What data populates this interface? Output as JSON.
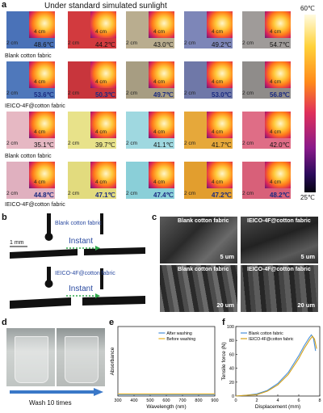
{
  "panel_a": {
    "label": "a",
    "title": "Under standard simulated sunlight",
    "colorbar": {
      "max": "60℃",
      "min": "25℃"
    },
    "tile_scale_fabric": "2 cm",
    "tile_scale_thermal": "4 cm",
    "rows": [
      {
        "label": "",
        "bold": false,
        "temps": [
          "48.6℃",
          "44.2℃",
          "43.0℃",
          "49.2℃",
          "54.7℃"
        ]
      },
      {
        "label": "Blank cotton fabric",
        "bold": true,
        "temps": [
          "53.6℃",
          "50.3℃",
          "49.7℃",
          "53.0℃",
          "56.8℃"
        ]
      },
      {
        "label": "IEICO-4F@cotton fabric",
        "bold": false,
        "temps": [
          "35.1℃",
          "39.7℃",
          "41.1℃",
          "41.7℃",
          "42.0℃"
        ]
      },
      {
        "label": "Blank cotton fabric",
        "bold": true,
        "temps": [
          "44.8℃",
          "47.1℃",
          "47.4℃",
          "47.2℃",
          "48.2℃"
        ]
      }
    ],
    "bottom_label": "IEICO-4F@cotton fabric",
    "colors": {
      "row0": [
        "#4a72b8",
        "#d23a3e",
        "#b9ad8f",
        "#7d86b8",
        "#9f9b99"
      ],
      "row1": [
        "#4f78bb",
        "#c8353c",
        "#a79d82",
        "#6f78a8",
        "#8f8c8a"
      ],
      "row2": [
        "#e6b8c3",
        "#e8e28a",
        "#9fd8e0",
        "#e6a83a",
        "#df6d86"
      ],
      "row3": [
        "#e0b0bf",
        "#e2db7e",
        "#8acfd8",
        "#e29e2e",
        "#d86079"
      ]
    }
  },
  "panel_b": {
    "label": "b",
    "top_label": "Blank cotton fabric",
    "bottom_label": "IEICO-4F@cotton fabric",
    "scale": "1 mm",
    "instant": "Instant"
  },
  "panel_c": {
    "label": "c",
    "images": [
      {
        "label": "Blank cotton fabric",
        "scale": "5 um"
      },
      {
        "label": "IEICO-4F@cotton fabric",
        "scale": "5 um"
      },
      {
        "label": "Blank cotton fabric",
        "scale": "20 um"
      },
      {
        "label": "IEICO-4F@cotton fabric",
        "scale": "20 um"
      }
    ]
  },
  "panel_d": {
    "label": "d",
    "caption": "Wash 10 times"
  },
  "chart_data": [
    {
      "panel": "e",
      "type": "line",
      "xlabel": "Wavelength (nm)",
      "ylabel": "Absorbance",
      "xlim": [
        300,
        900
      ],
      "xticks": [
        "300",
        "400",
        "500",
        "600",
        "700",
        "800",
        "900"
      ],
      "series": [
        {
          "name": "After washing",
          "color": "#4a90d9",
          "x": [
            300,
            400,
            500,
            600,
            700,
            800,
            900
          ],
          "y": [
            0.02,
            0.02,
            0.02,
            0.02,
            0.02,
            0.02,
            0.02
          ]
        },
        {
          "name": "Before washing",
          "color": "#e8b020",
          "x": [
            300,
            400,
            500,
            600,
            700,
            800,
            900
          ],
          "y": [
            0.03,
            0.03,
            0.03,
            0.03,
            0.03,
            0.03,
            0.03
          ]
        }
      ],
      "ylim": [
        0,
        1
      ]
    },
    {
      "panel": "f",
      "type": "line",
      "xlabel": "Displacement (mm)",
      "ylabel": "Tensile force (N)",
      "xlim": [
        0,
        8
      ],
      "ylim": [
        0,
        100
      ],
      "xticks": [
        "0",
        "2",
        "4",
        "6",
        "8"
      ],
      "yticks": [
        "0",
        "20",
        "40",
        "60",
        "80",
        "100"
      ],
      "series": [
        {
          "name": "Blank cotton fabric",
          "color": "#4a90d9",
          "x": [
            0,
            1,
            2,
            3,
            4,
            5,
            6,
            6.5,
            7,
            7.2,
            7.4,
            7.6
          ],
          "y": [
            0,
            1,
            3,
            8,
            18,
            34,
            58,
            72,
            84,
            88,
            83,
            65
          ]
        },
        {
          "name": "IEICO-4F@cotton fabric",
          "color": "#d4a017",
          "x": [
            0,
            1,
            2,
            3,
            4,
            5,
            6,
            6.5,
            7,
            7.3,
            7.5,
            7.7
          ],
          "y": [
            0,
            1,
            2,
            7,
            16,
            31,
            54,
            68,
            80,
            86,
            82,
            68
          ]
        }
      ]
    }
  ]
}
